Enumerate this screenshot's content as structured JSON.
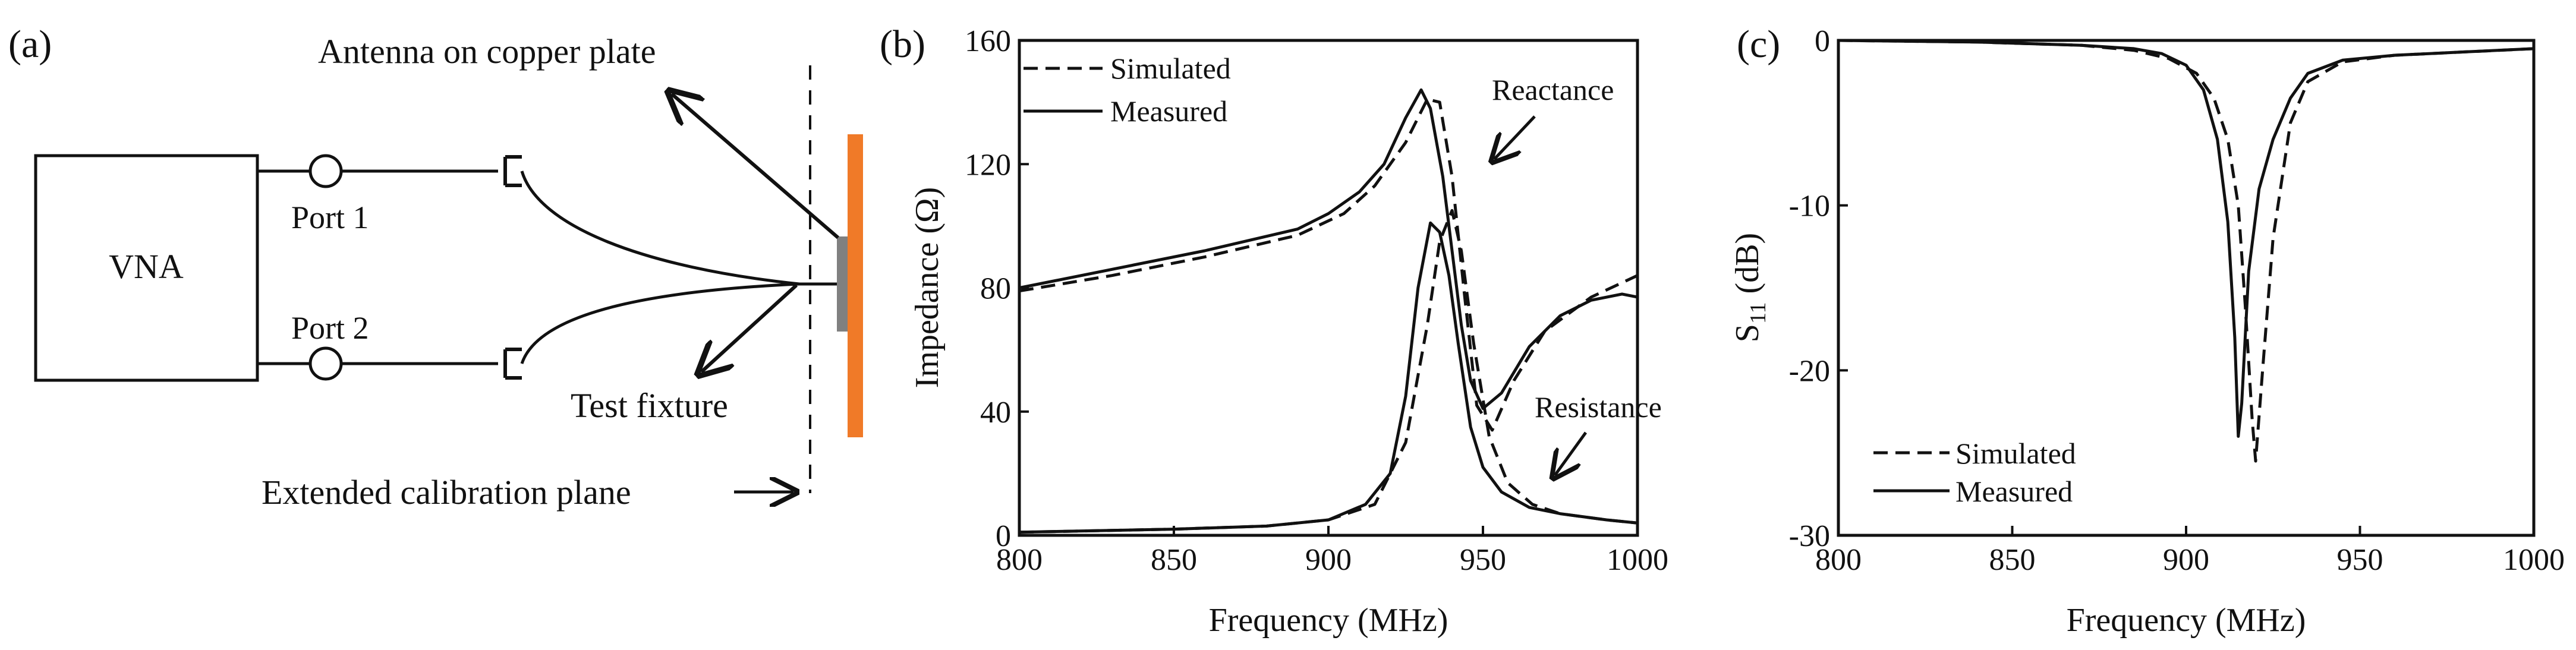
{
  "panel_a": {
    "label": "(a)",
    "vna_label": "VNA",
    "port1_label": "Port 1",
    "port2_label": "Port 2",
    "antenna_label": "Antenna on copper plate",
    "fixture_label": "Test fixture",
    "calibration_label": "Extended calibration plane",
    "plate_color": "#F07A28",
    "antenna_color": "#808080"
  },
  "panel_b": {
    "label": "(b)",
    "annotation_reactance": "Reactance",
    "annotation_resistance": "Resistance"
  },
  "panel_c": {
    "label": "(c)",
    "ylabel_main": "S",
    "ylabel_sub": "11",
    "ylabel_unit": " (dB)"
  },
  "chart_data": [
    {
      "type": "line",
      "panel": "(b)",
      "title": "",
      "xlabel": "Frequency (MHz)",
      "ylabel": "Impedance (Ω)",
      "xlim": [
        800,
        1000
      ],
      "ylim": [
        0,
        160
      ],
      "xticks": [
        800,
        850,
        900,
        950,
        1000
      ],
      "yticks": [
        0,
        40,
        80,
        120,
        160
      ],
      "legend": {
        "position": "top-left",
        "entries": [
          "Simulated",
          "Measured"
        ]
      },
      "series": [
        {
          "name": "Simulated",
          "quantity": "Reactance",
          "style": "dashed",
          "x": [
            800,
            830,
            860,
            890,
            905,
            915,
            925,
            932,
            936,
            940,
            944,
            948,
            953,
            960,
            970,
            985,
            1000
          ],
          "y": [
            79,
            84,
            90,
            97,
            104,
            113,
            127,
            141,
            140,
            116,
            78,
            42,
            34,
            50,
            66,
            77,
            84
          ]
        },
        {
          "name": "Measured",
          "quantity": "Reactance",
          "style": "solid",
          "x": [
            800,
            830,
            860,
            890,
            900,
            910,
            918,
            925,
            930,
            933,
            937,
            940,
            943,
            946,
            950,
            956,
            965,
            975,
            985,
            995,
            1000
          ],
          "y": [
            80,
            86,
            92,
            99,
            104,
            111,
            120,
            135,
            144,
            138,
            116,
            92,
            68,
            50,
            41,
            46,
            61,
            71,
            76,
            78,
            77
          ]
        },
        {
          "name": "Simulated",
          "quantity": "Resistance",
          "style": "dashed",
          "x": [
            800,
            850,
            880,
            900,
            915,
            925,
            932,
            936,
            940,
            943,
            947,
            952,
            958,
            966,
            975,
            990,
            1000
          ],
          "y": [
            1,
            2,
            3,
            5,
            10,
            30,
            68,
            95,
            105,
            92,
            62,
            32,
            17,
            10,
            7,
            5,
            4
          ]
        },
        {
          "name": "Measured",
          "quantity": "Resistance",
          "style": "solid",
          "x": [
            800,
            850,
            880,
            900,
            912,
            920,
            925,
            929,
            933,
            936,
            939,
            942,
            946,
            950,
            956,
            965,
            975,
            990,
            1000
          ],
          "y": [
            1,
            2,
            3,
            5,
            10,
            20,
            45,
            80,
            101,
            98,
            84,
            62,
            35,
            22,
            14,
            9,
            7,
            5,
            4
          ]
        }
      ],
      "annotations": [
        "Reactance",
        "Resistance"
      ]
    },
    {
      "type": "line",
      "panel": "(c)",
      "title": "",
      "xlabel": "Frequency (MHz)",
      "ylabel": "S11 (dB)",
      "xlim": [
        800,
        1000
      ],
      "ylim": [
        -30,
        0
      ],
      "xticks": [
        800,
        850,
        900,
        950,
        1000
      ],
      "yticks": [
        0,
        -10,
        -20,
        -30
      ],
      "legend": {
        "position": "bottom-left",
        "entries": [
          "Simulated",
          "Measured"
        ]
      },
      "series": [
        {
          "name": "Simulated",
          "style": "dashed",
          "x": [
            800,
            840,
            870,
            885,
            895,
            903,
            908,
            912,
            915,
            917,
            919,
            920,
            922,
            925,
            930,
            935,
            945,
            960,
            980,
            1000
          ],
          "y": [
            0,
            -0.1,
            -0.3,
            -0.6,
            -1.1,
            -2,
            -3.5,
            -6,
            -10,
            -16,
            -23,
            -25.5,
            -20,
            -12,
            -5,
            -2.5,
            -1.3,
            -0.9,
            -0.7,
            -0.5
          ]
        },
        {
          "name": "Measured",
          "style": "solid",
          "x": [
            800,
            840,
            870,
            885,
            893,
            900,
            905,
            909,
            912,
            914,
            915,
            916,
            918,
            921,
            925,
            930,
            935,
            945,
            960,
            980,
            1000
          ],
          "y": [
            0,
            -0.1,
            -0.3,
            -0.5,
            -0.8,
            -1.5,
            -3,
            -6,
            -11,
            -18,
            -24,
            -22,
            -14,
            -9,
            -6,
            -3.5,
            -2,
            -1.2,
            -0.9,
            -0.7,
            -0.5
          ]
        }
      ]
    }
  ]
}
